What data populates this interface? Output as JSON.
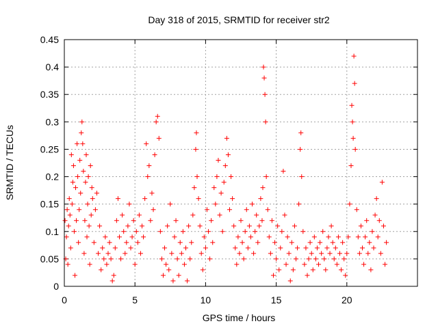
{
  "chart_data": {
    "type": "scatter",
    "title": "Day 318 of 2015, SRMTID for receiver str2",
    "xlabel": "GPS time / hours",
    "ylabel": "SRMTID / TECUs",
    "xlim": [
      0,
      25
    ],
    "ylim": [
      0,
      0.45
    ],
    "x_ticks": [
      0,
      5,
      10,
      15,
      20
    ],
    "x_tick_labels": [
      "0",
      "5",
      "10",
      "15",
      "20"
    ],
    "y_ticks": [
      0,
      0.05,
      0.1,
      0.15,
      0.2,
      0.25,
      0.3,
      0.35,
      0.4,
      0.45
    ],
    "y_tick_labels": [
      "0",
      "0.05",
      "0.1",
      "0.15",
      "0.2",
      "0.25",
      "0.3",
      "0.35",
      "0.4",
      "0.45"
    ],
    "grid": true,
    "marker": "plus",
    "colors": {
      "series": "#ff0000",
      "grid": "#a0a0a0",
      "axis": "#000000"
    },
    "series": [
      {
        "name": "str2",
        "points": [
          [
            0.05,
            0.12
          ],
          [
            0.1,
            0.05
          ],
          [
            0.15,
            0.09
          ],
          [
            0.2,
            0.14
          ],
          [
            0.25,
            0.04
          ],
          [
            0.3,
            0.11
          ],
          [
            0.35,
            0.16
          ],
          [
            0.4,
            0.13
          ],
          [
            0.45,
            0.07
          ],
          [
            0.5,
            0.24
          ],
          [
            0.55,
            0.15
          ],
          [
            0.6,
            0.19
          ],
          [
            0.65,
            0.22
          ],
          [
            0.7,
            0.1
          ],
          [
            0.75,
            0.02
          ],
          [
            0.8,
            0.18
          ],
          [
            0.85,
            0.12
          ],
          [
            0.9,
            0.26
          ],
          [
            0.95,
            0.2
          ],
          [
            1.0,
            0.08
          ],
          [
            1.05,
            0.14
          ],
          [
            1.1,
            0.23
          ],
          [
            1.15,
            0.17
          ],
          [
            1.2,
            0.28
          ],
          [
            1.25,
            0.3
          ],
          [
            1.3,
            0.26
          ],
          [
            1.35,
            0.21
          ],
          [
            1.4,
            0.06
          ],
          [
            1.45,
            0.12
          ],
          [
            1.5,
            0.19
          ],
          [
            1.55,
            0.24
          ],
          [
            1.6,
            0.09
          ],
          [
            1.65,
            0.15
          ],
          [
            1.7,
            0.2
          ],
          [
            1.75,
            0.11
          ],
          [
            1.8,
            0.04
          ],
          [
            1.85,
            0.22
          ],
          [
            1.9,
            0.13
          ],
          [
            1.95,
            0.18
          ],
          [
            2.0,
            0.16
          ],
          [
            2.1,
            0.08
          ],
          [
            2.2,
            0.14
          ],
          [
            2.3,
            0.17
          ],
          [
            2.4,
            0.06
          ],
          [
            2.5,
            0.11
          ],
          [
            2.6,
            0.03
          ],
          [
            2.7,
            0.07
          ],
          [
            2.8,
            0.05
          ],
          [
            2.9,
            0.09
          ],
          [
            3.0,
            0.04
          ],
          [
            3.1,
            0.06
          ],
          [
            3.2,
            0.08
          ],
          [
            3.3,
            0.05
          ],
          [
            3.4,
            0.01
          ],
          [
            3.5,
            0.02
          ],
          [
            3.6,
            0.07
          ],
          [
            3.7,
            0.12
          ],
          [
            3.8,
            0.16
          ],
          [
            3.9,
            0.09
          ],
          [
            4.0,
            0.05
          ],
          [
            4.1,
            0.13
          ],
          [
            4.2,
            0.1
          ],
          [
            4.3,
            0.06
          ],
          [
            4.4,
            0.08
          ],
          [
            4.5,
            0.11
          ],
          [
            4.6,
            0.15
          ],
          [
            4.7,
            0.07
          ],
          [
            4.8,
            0.09
          ],
          [
            4.9,
            0.12
          ],
          [
            5.0,
            0.04
          ],
          [
            5.1,
            0.1
          ],
          [
            5.2,
            0.08
          ],
          [
            5.3,
            0.13
          ],
          [
            5.4,
            0.06
          ],
          [
            5.5,
            0.11
          ],
          [
            5.6,
            0.09
          ],
          [
            5.7,
            0.16
          ],
          [
            5.8,
            0.26
          ],
          [
            5.9,
            0.2
          ],
          [
            6.0,
            0.22
          ],
          [
            6.1,
            0.12
          ],
          [
            6.2,
            0.17
          ],
          [
            6.3,
            0.14
          ],
          [
            6.4,
            0.24
          ],
          [
            6.5,
            0.3
          ],
          [
            6.6,
            0.31
          ],
          [
            6.7,
            0.27
          ],
          [
            6.8,
            0.1
          ],
          [
            6.9,
            0.05
          ],
          [
            7.0,
            0.02
          ],
          [
            7.1,
            0.07
          ],
          [
            7.2,
            0.04
          ],
          [
            7.3,
            0.11
          ],
          [
            7.4,
            0.03
          ],
          [
            7.5,
            0.15
          ],
          [
            7.6,
            0.06
          ],
          [
            7.7,
            0.01
          ],
          [
            7.8,
            0.09
          ],
          [
            7.9,
            0.12
          ],
          [
            8.0,
            0.05
          ],
          [
            8.1,
            0.02
          ],
          [
            8.2,
            0.08
          ],
          [
            8.3,
            0.06
          ],
          [
            8.4,
            0.1
          ],
          [
            8.5,
            0.04
          ],
          [
            8.6,
            0.07
          ],
          [
            8.7,
            0.01
          ],
          [
            8.8,
            0.11
          ],
          [
            8.9,
            0.05
          ],
          [
            9.0,
            0.08
          ],
          [
            9.1,
            0.13
          ],
          [
            9.2,
            0.18
          ],
          [
            9.3,
            0.25
          ],
          [
            9.35,
            0.28
          ],
          [
            9.4,
            0.2
          ],
          [
            9.5,
            0.16
          ],
          [
            9.6,
            0.11
          ],
          [
            9.7,
            0.06
          ],
          [
            9.8,
            0.03
          ],
          [
            9.9,
            0.09
          ],
          [
            10.0,
            0.07
          ],
          [
            10.1,
            0.14
          ],
          [
            10.2,
            0.1
          ],
          [
            10.3,
            0.05
          ],
          [
            10.4,
            0.12
          ],
          [
            10.5,
            0.08
          ],
          [
            10.6,
            0.18
          ],
          [
            10.7,
            0.15
          ],
          [
            10.8,
            0.2
          ],
          [
            10.9,
            0.23
          ],
          [
            11.0,
            0.13
          ],
          [
            11.1,
            0.17
          ],
          [
            11.2,
            0.1
          ],
          [
            11.3,
            0.19
          ],
          [
            11.4,
            0.22
          ],
          [
            11.5,
            0.27
          ],
          [
            11.6,
            0.24
          ],
          [
            11.7,
            0.14
          ],
          [
            11.8,
            0.2
          ],
          [
            11.9,
            0.16
          ],
          [
            12.0,
            0.11
          ],
          [
            12.1,
            0.07
          ],
          [
            12.2,
            0.04
          ],
          [
            12.3,
            0.09
          ],
          [
            12.4,
            0.06
          ],
          [
            12.5,
            0.12
          ],
          [
            12.6,
            0.08
          ],
          [
            12.7,
            0.05
          ],
          [
            12.8,
            0.1
          ],
          [
            12.9,
            0.14
          ],
          [
            13.0,
            0.07
          ],
          [
            13.1,
            0.11
          ],
          [
            13.2,
            0.09
          ],
          [
            13.3,
            0.15
          ],
          [
            13.4,
            0.06
          ],
          [
            13.5,
            0.1
          ],
          [
            13.6,
            0.13
          ],
          [
            13.7,
            0.08
          ],
          [
            13.8,
            0.11
          ],
          [
            13.9,
            0.16
          ],
          [
            14.0,
            0.12
          ],
          [
            14.05,
            0.18
          ],
          [
            14.1,
            0.4
          ],
          [
            14.15,
            0.38
          ],
          [
            14.2,
            0.35
          ],
          [
            14.25,
            0.3
          ],
          [
            14.3,
            0.2
          ],
          [
            14.4,
            0.14
          ],
          [
            14.5,
            0.09
          ],
          [
            14.6,
            0.06
          ],
          [
            14.7,
            0.12
          ],
          [
            14.8,
            0.02
          ],
          [
            14.9,
            0.08
          ],
          [
            15.0,
            0.05
          ],
          [
            15.1,
            0.11
          ],
          [
            15.2,
            0.03
          ],
          [
            15.3,
            0.07
          ],
          [
            15.4,
            0.1
          ],
          [
            15.5,
            0.21
          ],
          [
            15.6,
            0.13
          ],
          [
            15.7,
            0.04
          ],
          [
            15.8,
            0.09
          ],
          [
            15.9,
            0.06
          ],
          [
            16.0,
            0.01
          ],
          [
            16.1,
            0.08
          ],
          [
            16.2,
            0.03
          ],
          [
            16.3,
            0.11
          ],
          [
            16.4,
            0.05
          ],
          [
            16.5,
            0.07
          ],
          [
            16.6,
            0.15
          ],
          [
            16.7,
            0.25
          ],
          [
            16.75,
            0.28
          ],
          [
            16.8,
            0.2
          ],
          [
            16.9,
            0.1
          ],
          [
            17.0,
            0.04
          ],
          [
            17.1,
            0.07
          ],
          [
            17.2,
            0.02
          ],
          [
            17.3,
            0.05
          ],
          [
            17.4,
            0.08
          ],
          [
            17.5,
            0.06
          ],
          [
            17.6,
            0.03
          ],
          [
            17.7,
            0.09
          ],
          [
            17.8,
            0.05
          ],
          [
            17.9,
            0.07
          ],
          [
            18.0,
            0.04
          ],
          [
            18.1,
            0.08
          ],
          [
            18.2,
            0.06
          ],
          [
            18.3,
            0.1
          ],
          [
            18.4,
            0.05
          ],
          [
            18.5,
            0.03
          ],
          [
            18.6,
            0.07
          ],
          [
            18.7,
            0.09
          ],
          [
            18.8,
            0.06
          ],
          [
            18.9,
            0.11
          ],
          [
            19.0,
            0.08
          ],
          [
            19.1,
            0.05
          ],
          [
            19.2,
            0.07
          ],
          [
            19.3,
            0.04
          ],
          [
            19.4,
            0.09
          ],
          [
            19.5,
            0.06
          ],
          [
            19.6,
            0.03
          ],
          [
            19.7,
            0.08
          ],
          [
            19.8,
            0.05
          ],
          [
            19.9,
            0.02
          ],
          [
            20.0,
            0.06
          ],
          [
            20.1,
            0.09
          ],
          [
            20.2,
            0.15
          ],
          [
            20.3,
            0.22
          ],
          [
            20.35,
            0.33
          ],
          [
            20.4,
            0.3
          ],
          [
            20.45,
            0.27
          ],
          [
            20.5,
            0.42
          ],
          [
            20.55,
            0.37
          ],
          [
            20.6,
            0.25
          ],
          [
            20.7,
            0.14
          ],
          [
            20.8,
            0.09
          ],
          [
            20.9,
            0.06
          ],
          [
            21.0,
            0.11
          ],
          [
            21.1,
            0.07
          ],
          [
            21.2,
            0.04
          ],
          [
            21.3,
            0.09
          ],
          [
            21.4,
            0.12
          ],
          [
            21.5,
            0.06
          ],
          [
            21.6,
            0.08
          ],
          [
            21.7,
            0.03
          ],
          [
            21.8,
            0.1
          ],
          [
            21.9,
            0.07
          ],
          [
            22.0,
            0.13
          ],
          [
            22.1,
            0.16
          ],
          [
            22.2,
            0.09
          ],
          [
            22.3,
            0.12
          ],
          [
            22.4,
            0.06
          ],
          [
            22.5,
            0.19
          ],
          [
            22.6,
            0.11
          ],
          [
            22.7,
            0.04
          ],
          [
            22.8,
            0.08
          ]
        ]
      }
    ]
  }
}
